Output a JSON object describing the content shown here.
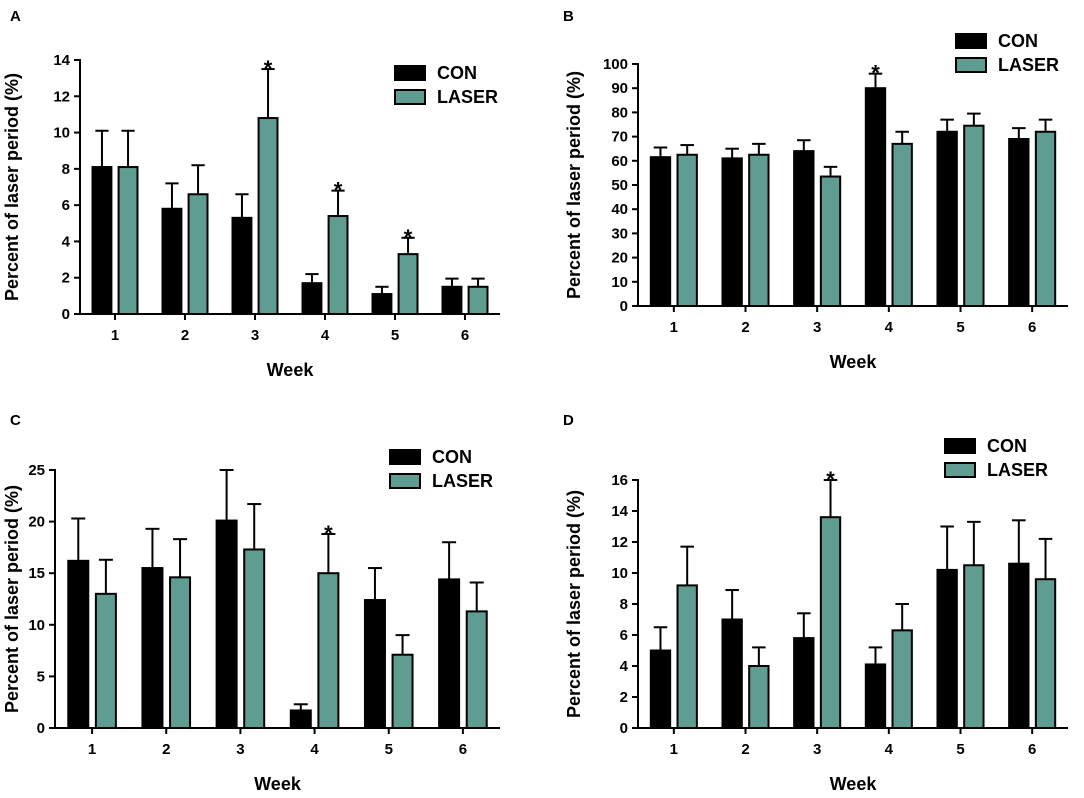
{
  "colors": {
    "con": "#000000",
    "laser": "#5f9c92",
    "axis": "#000000"
  },
  "chart_data": [
    {
      "panel": "A",
      "type": "bar",
      "xlabel": "Week",
      "ylabel": "Percent of laser period (%)",
      "ylim": [
        0,
        14
      ],
      "yticks": [
        0,
        2,
        4,
        6,
        8,
        10,
        12,
        14
      ],
      "categories": [
        "1",
        "2",
        "3",
        "4",
        "5",
        "6"
      ],
      "series": [
        {
          "name": "CON",
          "values": [
            8.1,
            5.8,
            5.3,
            1.7,
            1.1,
            1.5
          ],
          "errors": [
            2.0,
            1.4,
            1.3,
            0.5,
            0.4,
            0.45
          ]
        },
        {
          "name": "LASER",
          "values": [
            8.1,
            6.6,
            10.8,
            5.4,
            3.3,
            1.5
          ],
          "errors": [
            2.0,
            1.6,
            2.7,
            1.4,
            0.9,
            0.45
          ]
        }
      ],
      "significance": [
        {
          "category": 2,
          "series": 1,
          "label": "*"
        },
        {
          "category": 3,
          "series": 1,
          "label": "*"
        },
        {
          "category": 4,
          "series": 1,
          "label": "*"
        }
      ],
      "legend": "top-right"
    },
    {
      "panel": "B",
      "type": "bar",
      "xlabel": "Week",
      "ylabel": "Percent of laser period (%)",
      "ylim": [
        0,
        100
      ],
      "yticks": [
        0,
        10,
        20,
        30,
        40,
        50,
        60,
        70,
        80,
        90,
        100
      ],
      "categories": [
        "1",
        "2",
        "3",
        "4",
        "5",
        "6"
      ],
      "series": [
        {
          "name": "CON",
          "values": [
            61.5,
            61,
            64,
            90,
            72,
            69
          ],
          "errors": [
            4,
            4,
            4.5,
            6,
            5,
            4.5
          ]
        },
        {
          "name": "LASER",
          "values": [
            62.5,
            62.5,
            53.5,
            67,
            74.5,
            72
          ],
          "errors": [
            4,
            4.5,
            4,
            5,
            5,
            5
          ]
        }
      ],
      "significance": [
        {
          "category": 3,
          "series": 0,
          "label": "*"
        }
      ],
      "legend": "top-right"
    },
    {
      "panel": "C",
      "type": "bar",
      "xlabel": "Week",
      "ylabel": "Percent of laser period (%)",
      "ylim": [
        0,
        25
      ],
      "yticks": [
        0,
        5,
        10,
        15,
        20,
        25
      ],
      "categories": [
        "1",
        "2",
        "3",
        "4",
        "5",
        "6"
      ],
      "series": [
        {
          "name": "CON",
          "values": [
            16.2,
            15.5,
            20.1,
            1.7,
            12.4,
            14.4
          ],
          "errors": [
            4.1,
            3.8,
            4.9,
            0.6,
            3.1,
            3.6
          ]
        },
        {
          "name": "LASER",
          "values": [
            13.0,
            14.6,
            17.3,
            15.0,
            7.1,
            11.3
          ],
          "errors": [
            3.3,
            3.7,
            4.4,
            3.8,
            1.9,
            2.8
          ]
        }
      ],
      "significance": [
        {
          "category": 3,
          "series": 1,
          "label": "*"
        }
      ],
      "legend": "top-right"
    },
    {
      "panel": "D",
      "type": "bar",
      "xlabel": "Week",
      "ylabel": "Percent of laser period (%)",
      "ylim": [
        0,
        16
      ],
      "yticks": [
        0,
        2,
        4,
        6,
        8,
        10,
        12,
        14,
        16
      ],
      "categories": [
        "1",
        "2",
        "3",
        "4",
        "5",
        "6"
      ],
      "series": [
        {
          "name": "CON",
          "values": [
            5.0,
            7.0,
            5.8,
            4.1,
            10.2,
            10.6
          ],
          "errors": [
            1.5,
            1.9,
            1.6,
            1.1,
            2.8,
            2.8
          ]
        },
        {
          "name": "LASER",
          "values": [
            9.2,
            4.0,
            13.6,
            6.3,
            10.5,
            9.6
          ],
          "errors": [
            2.5,
            1.2,
            2.4,
            1.7,
            2.8,
            2.6
          ]
        }
      ],
      "significance": [
        {
          "category": 2,
          "series": 1,
          "label": "*"
        }
      ],
      "legend": "top-right"
    }
  ]
}
